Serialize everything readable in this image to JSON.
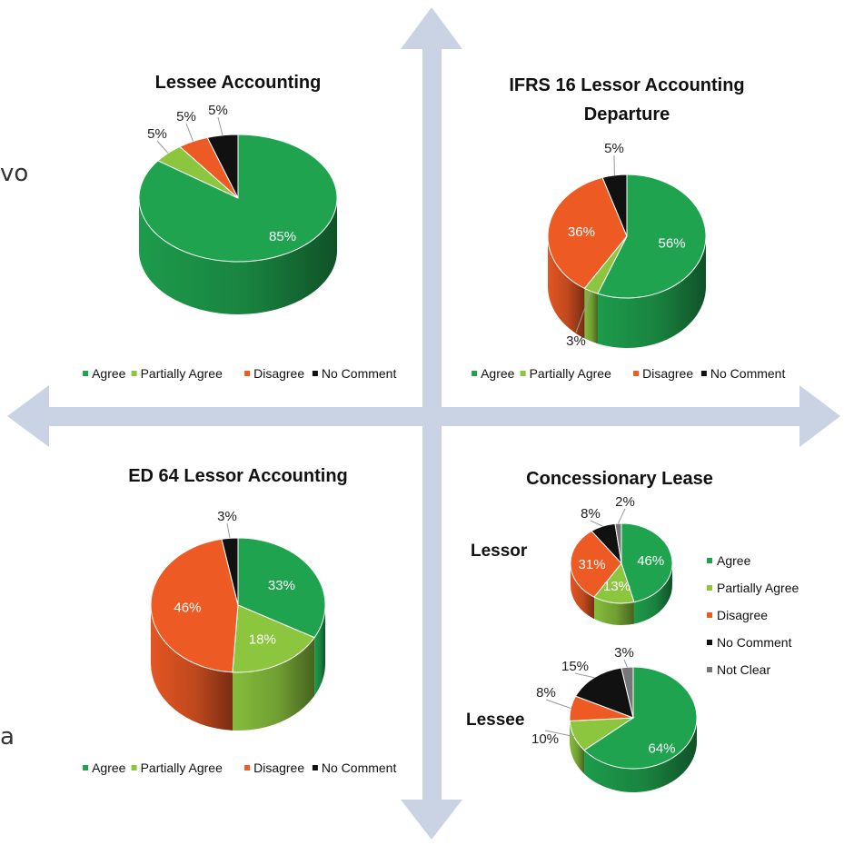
{
  "side_text": {
    "top_fragment": "vo",
    "bottom_fragment": "a"
  },
  "colors": {
    "Agree": "#1fa34f",
    "Partially Agree": "#8cc63f",
    "Disagree": "#ee5a24",
    "No Comment": "#111111",
    "Not Clear": "#777777",
    "arrow": "#c9d3e4"
  },
  "legend_labels": [
    "Agree",
    "Partially Agree",
    "Disagree",
    "No Comment",
    "Not Clear"
  ],
  "chart_data": [
    {
      "type": "pie",
      "title": "Lessee Accounting",
      "categories": [
        "Agree",
        "Partially Agree",
        "Disagree",
        "No Comment"
      ],
      "values": [
        85,
        5,
        5,
        5
      ],
      "labels": [
        "85%",
        "5%",
        "5%",
        "5%"
      ],
      "legend": "bottom"
    },
    {
      "type": "pie",
      "title": "IFRS 16 Lessor Accounting Departure",
      "categories": [
        "Agree",
        "Partially Agree",
        "Disagree",
        "No Comment"
      ],
      "values": [
        56,
        3,
        36,
        5
      ],
      "labels": [
        "56%",
        "3%",
        "36%",
        "5%"
      ],
      "legend": "bottom"
    },
    {
      "type": "pie",
      "title": "ED 64 Lessor Accounting",
      "categories": [
        "Agree",
        "Partially Agree",
        "Disagree",
        "No Comment"
      ],
      "values": [
        33,
        18,
        46,
        3
      ],
      "labels": [
        "33%",
        "18%",
        "46%",
        "3%"
      ],
      "legend": "bottom"
    },
    {
      "type": "pie",
      "title": "Concessionary Lease",
      "subtitle": "Lessor",
      "categories": [
        "Agree",
        "Partially Agree",
        "Disagree",
        "No Comment",
        "Not Clear"
      ],
      "values": [
        46,
        13,
        31,
        8,
        2
      ],
      "labels": [
        "46%",
        "13%",
        "31%",
        "8%",
        "2%"
      ],
      "legend": "right"
    },
    {
      "type": "pie",
      "title": "Concessionary Lease",
      "subtitle": "Lessee",
      "categories": [
        "Agree",
        "Partially Agree",
        "Disagree",
        "No Comment",
        "Not Clear"
      ],
      "values": [
        64,
        10,
        8,
        15,
        3
      ],
      "labels": [
        "64%",
        "10%",
        "8%",
        "15%",
        "3%"
      ],
      "legend": "right"
    }
  ]
}
